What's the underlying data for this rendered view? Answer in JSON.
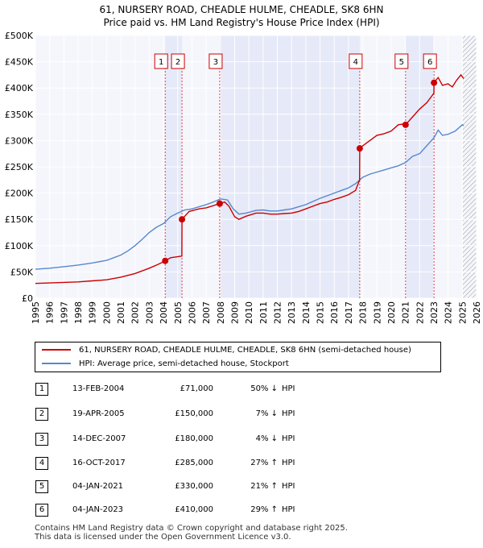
{
  "title_line1": "61, NURSERY ROAD, CHEADLE HULME, CHEADLE, SK8 6HN",
  "title_line2": "Price paid vs. HM Land Registry's House Price Index (HPI)",
  "chart_data": {
    "type": "line",
    "title": "61, NURSERY ROAD, CHEADLE HULME, CHEADLE, SK8 6HN — Price paid vs. HM Land Registry's House Price Index (HPI)",
    "xlim": [
      1995,
      2026
    ],
    "ylim": [
      0,
      500000
    ],
    "yticks": [
      0,
      50000,
      100000,
      150000,
      200000,
      250000,
      300000,
      350000,
      400000,
      450000,
      500000
    ],
    "ytick_labels": [
      "£0",
      "£50K",
      "£100K",
      "£150K",
      "£200K",
      "£250K",
      "£300K",
      "£350K",
      "£400K",
      "£450K",
      "£500K"
    ],
    "xticks": [
      1995,
      1996,
      1997,
      1998,
      1999,
      2000,
      2001,
      2002,
      2003,
      2004,
      2005,
      2006,
      2007,
      2008,
      2009,
      2010,
      2011,
      2012,
      2013,
      2014,
      2015,
      2016,
      2017,
      2018,
      2019,
      2020,
      2021,
      2022,
      2023,
      2024,
      2025,
      2026
    ],
    "shaded_periods": [
      [
        2004.12,
        2005.3
      ],
      [
        2007.95,
        2017.79
      ],
      [
        2021.01,
        2023.01
      ]
    ],
    "hatched_future_from": 2025.0,
    "series": [
      {
        "name": "61, NURSERY ROAD, CHEADLE HULME, CHEADLE, SK8 6HN (semi-detached house)",
        "color": "#cc0000",
        "x": [
          1995.0,
          1996.0,
          1997.0,
          1998.0,
          1999.0,
          2000.0,
          2001.0,
          2002.0,
          2003.0,
          2003.6,
          2004.12,
          2004.5,
          2005.29,
          2005.3,
          2005.8,
          2006.5,
          2007.0,
          2007.5,
          2007.95,
          2008.3,
          2008.6,
          2009.0,
          2009.3,
          2009.8,
          2010.5,
          2011.0,
          2011.5,
          2012.0,
          2012.5,
          2013.0,
          2013.5,
          2014.0,
          2014.5,
          2015.0,
          2015.5,
          2016.0,
          2016.5,
          2017.0,
          2017.5,
          2017.78,
          2017.79,
          2018.0,
          2018.5,
          2019.0,
          2019.5,
          2020.0,
          2020.5,
          2021.0,
          2021.01,
          2021.5,
          2022.0,
          2022.5,
          2023.0,
          2023.01,
          2023.3,
          2023.6,
          2024.0,
          2024.3,
          2024.6,
          2024.9,
          2025.1
        ],
        "y": [
          28000,
          29000,
          30000,
          31000,
          33000,
          35000,
          40000,
          47000,
          57000,
          64000,
          71000,
          77000,
          80000,
          150000,
          165000,
          170000,
          172000,
          176000,
          180000,
          183000,
          175000,
          155000,
          150000,
          156000,
          162000,
          162000,
          160000,
          160000,
          161000,
          162000,
          165000,
          170000,
          175000,
          180000,
          183000,
          188000,
          192000,
          197000,
          205000,
          225000,
          285000,
          290000,
          300000,
          310000,
          313000,
          318000,
          330000,
          332000,
          330000,
          345000,
          360000,
          372000,
          390000,
          410000,
          420000,
          405000,
          408000,
          402000,
          415000,
          425000,
          418000
        ]
      },
      {
        "name": "HPI: Average price, semi-detached house, Stockport",
        "color": "#5588cc",
        "x": [
          1995.0,
          1996.0,
          1997.0,
          1998.0,
          1999.0,
          2000.0,
          2000.5,
          2001.0,
          2001.5,
          2002.0,
          2002.5,
          2003.0,
          2003.5,
          2004.0,
          2004.5,
          2005.0,
          2005.5,
          2006.0,
          2006.5,
          2007.0,
          2007.5,
          2008.0,
          2008.5,
          2008.9,
          2009.3,
          2009.8,
          2010.5,
          2011.0,
          2011.5,
          2012.0,
          2012.5,
          2013.0,
          2013.5,
          2014.0,
          2014.5,
          2015.0,
          2015.5,
          2016.0,
          2016.5,
          2017.0,
          2017.5,
          2018.0,
          2018.5,
          2019.0,
          2019.5,
          2020.0,
          2020.5,
          2021.0,
          2021.5,
          2022.0,
          2022.5,
          2023.0,
          2023.3,
          2023.6,
          2024.0,
          2024.5,
          2025.0,
          2025.1
        ],
        "y": [
          55000,
          57000,
          60000,
          63000,
          67000,
          72000,
          77000,
          82000,
          90000,
          100000,
          112000,
          125000,
          135000,
          142000,
          155000,
          162000,
          168000,
          170000,
          174000,
          178000,
          183000,
          189000,
          187000,
          170000,
          160000,
          162000,
          167000,
          168000,
          166000,
          166000,
          168000,
          170000,
          174000,
          178000,
          184000,
          190000,
          195000,
          200000,
          205000,
          210000,
          218000,
          230000,
          236000,
          240000,
          244000,
          248000,
          252000,
          258000,
          270000,
          275000,
          290000,
          305000,
          320000,
          310000,
          312000,
          318000,
          330000,
          328000
        ]
      }
    ],
    "markers": [
      {
        "label": "1",
        "x": 2004.12,
        "y": 71000
      },
      {
        "label": "2",
        "x": 2005.3,
        "y": 150000
      },
      {
        "label": "3",
        "x": 2007.95,
        "y": 180000
      },
      {
        "label": "4",
        "x": 2017.79,
        "y": 285000
      },
      {
        "label": "5",
        "x": 2021.01,
        "y": 330000
      },
      {
        "label": "6",
        "x": 2023.01,
        "y": 410000
      }
    ]
  },
  "legend": {
    "item1": "61, NURSERY ROAD, CHEADLE HULME, CHEADLE, SK8 6HN (semi-detached house)",
    "item2": "HPI: Average price, semi-detached house, Stockport",
    "color1": "#cc0000",
    "color2": "#5588cc"
  },
  "transactions": [
    {
      "num": "1",
      "date": "13-FEB-2004",
      "price": "£71,000",
      "pct": "50% ↓",
      "hpi": "HPI"
    },
    {
      "num": "2",
      "date": "19-APR-2005",
      "price": "£150,000",
      "pct": "7% ↓",
      "hpi": "HPI"
    },
    {
      "num": "3",
      "date": "14-DEC-2007",
      "price": "£180,000",
      "pct": "4% ↓",
      "hpi": "HPI"
    },
    {
      "num": "4",
      "date": "16-OCT-2017",
      "price": "£285,000",
      "pct": "27% ↑",
      "hpi": "HPI"
    },
    {
      "num": "5",
      "date": "04-JAN-2021",
      "price": "£330,000",
      "pct": "21% ↑",
      "hpi": "HPI"
    },
    {
      "num": "6",
      "date": "04-JAN-2023",
      "price": "£410,000",
      "pct": "29% ↑",
      "hpi": "HPI"
    }
  ],
  "footer_line1": "Contains HM Land Registry data © Crown copyright and database right 2025.",
  "footer_line2": "This data is licensed under the Open Government Licence v3.0."
}
